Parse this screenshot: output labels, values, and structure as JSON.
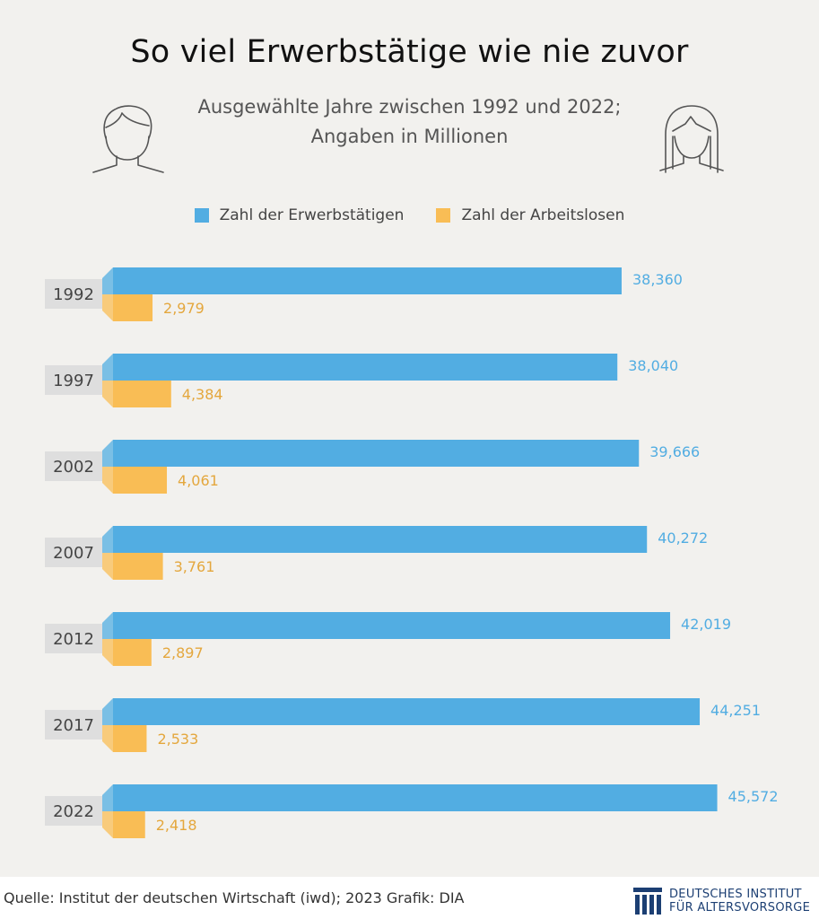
{
  "title": "So viel Erwerbstätige wie nie zuvor",
  "subtitle_line1": "Ausgewählte Jahre zwischen 1992 und 2022;",
  "subtitle_line2": "Angaben in Millionen",
  "icons": [
    "man-face-icon",
    "woman-face-icon",
    "institute-logo-icon"
  ],
  "colors": {
    "employed": "#52ade2",
    "unemployed": "#f9bd55",
    "year_box": "#dedede",
    "background": "#f2f1ee",
    "logo": "#1c3f73"
  },
  "chart_data": {
    "type": "bar",
    "orientation": "horizontal",
    "categories": [
      "1992",
      "1997",
      "2002",
      "2007",
      "2012",
      "2017",
      "2022"
    ],
    "series": [
      {
        "name": "Zahl der Erwerbstätigen",
        "values": [
          38.36,
          38.04,
          39.666,
          40.272,
          42.019,
          44.251,
          45.572
        ],
        "labels": [
          "38,360",
          "38,040",
          "39,666",
          "40,272",
          "42,019",
          "44,251",
          "45,572"
        ]
      },
      {
        "name": "Zahl der Arbeitslosen",
        "values": [
          2.979,
          4.384,
          4.061,
          3.761,
          2.897,
          2.533,
          2.418
        ],
        "labels": [
          "2,979",
          "4,384",
          "4,061",
          "3,761",
          "2,897",
          "2,533",
          "2,418"
        ]
      }
    ],
    "legend_position": "top-center",
    "grid": false
  },
  "footer": {
    "source": "Quelle: Institut der deutschen Wirtschaft (iwd); 2023  Grafik: DIA",
    "logo_line1": "DEUTSCHES INSTITUT",
    "logo_line2": "FÜR ALTERSVORSORGE"
  }
}
